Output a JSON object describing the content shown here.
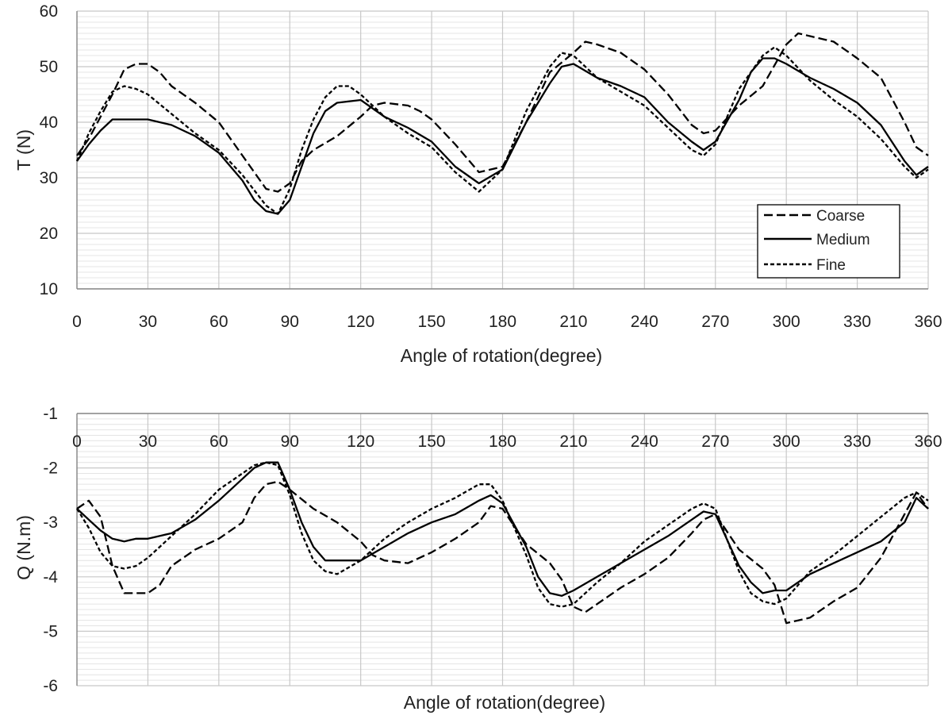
{
  "chart_data": [
    {
      "type": "line",
      "title": "",
      "xlabel": "Angle of rotation(degree)",
      "ylabel": "T (N)",
      "xlim": [
        0,
        360
      ],
      "ylim": [
        10,
        60
      ],
      "x_ticks": [
        0,
        30,
        60,
        90,
        120,
        150,
        180,
        210,
        240,
        270,
        300,
        330,
        360
      ],
      "y_ticks": [
        10,
        20,
        30,
        40,
        50,
        60
      ],
      "grid": true,
      "minor_grid": true,
      "legend_position": "bottom-right",
      "series": [
        {
          "name": "Coarse",
          "dash": "long-dash",
          "x": [
            0,
            5,
            10,
            15,
            20,
            25,
            30,
            35,
            40,
            50,
            60,
            70,
            80,
            85,
            90,
            95,
            100,
            110,
            120,
            125,
            130,
            140,
            145,
            150,
            160,
            170,
            180,
            190,
            200,
            210,
            215,
            220,
            230,
            240,
            250,
            260,
            265,
            270,
            280,
            290,
            300,
            305,
            310,
            320,
            330,
            340,
            350,
            355,
            360
          ],
          "y": [
            34,
            37,
            41,
            45,
            49.5,
            50.5,
            50.5,
            49,
            46.5,
            43.5,
            40,
            34,
            28,
            27.5,
            29,
            33,
            35,
            37.5,
            41,
            43,
            43.5,
            43,
            42,
            40.5,
            36,
            31,
            32,
            40,
            49,
            52.5,
            54.5,
            54,
            52.5,
            49.5,
            45,
            39.5,
            38,
            38.5,
            43,
            46.5,
            54,
            56,
            55.5,
            54.5,
            51.5,
            48,
            40,
            35.5,
            34
          ]
        },
        {
          "name": "Medium",
          "dash": "solid",
          "x": [
            0,
            5,
            10,
            15,
            20,
            25,
            30,
            40,
            50,
            60,
            70,
            75,
            80,
            85,
            90,
            95,
            100,
            105,
            110,
            120,
            125,
            130,
            140,
            150,
            160,
            170,
            180,
            190,
            200,
            205,
            210,
            220,
            230,
            240,
            250,
            260,
            265,
            270,
            280,
            285,
            290,
            295,
            300,
            310,
            320,
            330,
            340,
            350,
            355,
            360
          ],
          "y": [
            33,
            36,
            38.5,
            40.5,
            40.5,
            40.5,
            40.5,
            39.5,
            37.5,
            34.5,
            29.5,
            26,
            24,
            23.5,
            26,
            32,
            38,
            42,
            43.5,
            44,
            42.5,
            41,
            39,
            36.5,
            32,
            29,
            31.5,
            40,
            47,
            50,
            50.5,
            48,
            46.5,
            44.5,
            40,
            36.5,
            35,
            36.5,
            44,
            49,
            51.5,
            51.5,
            50.5,
            48,
            46,
            43.5,
            39.5,
            33,
            30.5,
            32
          ]
        },
        {
          "name": "Fine",
          "dash": "short-dash",
          "x": [
            0,
            5,
            10,
            15,
            20,
            25,
            30,
            40,
            50,
            60,
            70,
            80,
            85,
            90,
            95,
            100,
            105,
            110,
            115,
            120,
            130,
            140,
            150,
            160,
            170,
            180,
            190,
            200,
            205,
            210,
            220,
            230,
            240,
            250,
            260,
            265,
            270,
            280,
            290,
            295,
            300,
            310,
            320,
            330,
            340,
            350,
            355,
            360
          ],
          "y": [
            33,
            38,
            42,
            45.5,
            46.5,
            46,
            45,
            41.5,
            38,
            35,
            30.5,
            25,
            23.5,
            28,
            35,
            40.5,
            44.5,
            46.5,
            46.5,
            45,
            41,
            38,
            35.5,
            31,
            27.5,
            31.5,
            42,
            50,
            52.5,
            52,
            48,
            45.5,
            43,
            39,
            35,
            34,
            36,
            46,
            52,
            53.5,
            52,
            47.5,
            44,
            41,
            37,
            32,
            30,
            31.5
          ]
        }
      ]
    },
    {
      "type": "line",
      "title": "",
      "xlabel": "Angle of rotation(degree)",
      "ylabel": "Q (N.m)",
      "xlim": [
        0,
        360
      ],
      "ylim": [
        -6,
        -1
      ],
      "x_ticks": [
        0,
        30,
        60,
        90,
        120,
        150,
        180,
        210,
        240,
        270,
        300,
        330,
        360
      ],
      "y_ticks": [
        -1,
        -2,
        -3,
        -4,
        -5,
        -6
      ],
      "x_axis_position": "top",
      "grid": true,
      "minor_grid": true,
      "series": [
        {
          "name": "Coarse",
          "dash": "long-dash",
          "x": [
            0,
            5,
            10,
            15,
            20,
            25,
            30,
            35,
            40,
            50,
            60,
            70,
            75,
            80,
            85,
            90,
            100,
            110,
            120,
            125,
            130,
            140,
            150,
            160,
            170,
            175,
            180,
            190,
            200,
            205,
            210,
            215,
            220,
            230,
            240,
            250,
            260,
            265,
            270,
            280,
            290,
            295,
            300,
            305,
            310,
            320,
            330,
            340,
            350,
            355,
            360
          ],
          "y": [
            -2.75,
            -2.6,
            -2.9,
            -3.8,
            -4.3,
            -4.3,
            -4.3,
            -4.15,
            -3.8,
            -3.5,
            -3.3,
            -3.0,
            -2.55,
            -2.3,
            -2.25,
            -2.4,
            -2.75,
            -3.0,
            -3.35,
            -3.6,
            -3.7,
            -3.75,
            -3.55,
            -3.3,
            -3.0,
            -2.7,
            -2.75,
            -3.4,
            -3.75,
            -4.05,
            -4.55,
            -4.65,
            -4.5,
            -4.2,
            -3.95,
            -3.65,
            -3.2,
            -2.95,
            -2.85,
            -3.5,
            -3.85,
            -4.15,
            -4.85,
            -4.8,
            -4.75,
            -4.45,
            -4.2,
            -3.65,
            -2.85,
            -2.45,
            -2.75
          ]
        },
        {
          "name": "Medium",
          "dash": "solid",
          "x": [
            0,
            5,
            10,
            15,
            20,
            25,
            30,
            40,
            50,
            60,
            70,
            75,
            80,
            85,
            90,
            95,
            100,
            105,
            110,
            120,
            130,
            140,
            150,
            160,
            170,
            175,
            180,
            190,
            195,
            200,
            205,
            210,
            220,
            230,
            240,
            250,
            260,
            265,
            270,
            280,
            285,
            290,
            295,
            300,
            310,
            320,
            330,
            340,
            350,
            355,
            360
          ],
          "y": [
            -2.75,
            -2.95,
            -3.15,
            -3.3,
            -3.35,
            -3.3,
            -3.3,
            -3.2,
            -2.95,
            -2.6,
            -2.2,
            -2.0,
            -1.9,
            -1.9,
            -2.4,
            -3.0,
            -3.45,
            -3.7,
            -3.7,
            -3.7,
            -3.45,
            -3.2,
            -3.0,
            -2.85,
            -2.6,
            -2.5,
            -2.65,
            -3.45,
            -4.0,
            -4.3,
            -4.35,
            -4.25,
            -4.0,
            -3.75,
            -3.5,
            -3.25,
            -2.95,
            -2.8,
            -2.85,
            -3.8,
            -4.1,
            -4.3,
            -4.25,
            -4.25,
            -3.95,
            -3.75,
            -3.55,
            -3.35,
            -3.0,
            -2.55,
            -2.75
          ]
        },
        {
          "name": "Fine",
          "dash": "short-dash",
          "x": [
            0,
            5,
            10,
            15,
            20,
            25,
            30,
            40,
            50,
            60,
            70,
            75,
            80,
            85,
            90,
            95,
            100,
            105,
            110,
            120,
            130,
            140,
            150,
            160,
            170,
            175,
            180,
            190,
            195,
            200,
            205,
            210,
            220,
            230,
            240,
            250,
            260,
            265,
            270,
            280,
            285,
            290,
            295,
            300,
            310,
            320,
            330,
            340,
            350,
            355,
            360
          ],
          "y": [
            -2.75,
            -3.1,
            -3.55,
            -3.8,
            -3.85,
            -3.8,
            -3.65,
            -3.25,
            -2.85,
            -2.4,
            -2.1,
            -1.95,
            -1.9,
            -1.95,
            -2.5,
            -3.2,
            -3.7,
            -3.9,
            -3.95,
            -3.7,
            -3.3,
            -3.0,
            -2.75,
            -2.55,
            -2.3,
            -2.3,
            -2.6,
            -3.6,
            -4.2,
            -4.5,
            -4.55,
            -4.5,
            -4.1,
            -3.75,
            -3.35,
            -3.05,
            -2.75,
            -2.65,
            -2.75,
            -3.9,
            -4.3,
            -4.45,
            -4.5,
            -4.4,
            -3.9,
            -3.6,
            -3.25,
            -2.9,
            -2.55,
            -2.45,
            -2.6
          ]
        }
      ]
    }
  ]
}
